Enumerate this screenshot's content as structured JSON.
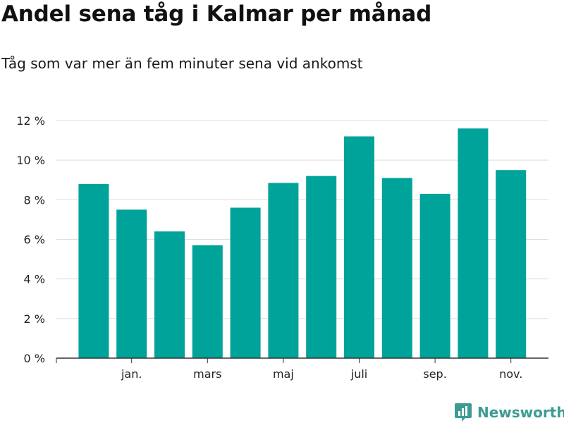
{
  "chart_data": {
    "type": "bar",
    "title": "Andel sena tåg i Kalmar per månad",
    "subtitle": "Tåg som var mer än fem minuter sena vid ankomst",
    "xlabel": "",
    "ylabel": "",
    "x_tick_labels": [
      "jan.",
      "mars",
      "maj",
      "juli",
      "sep.",
      "nov."
    ],
    "y_tick_labels": [
      "0 %",
      "2 %",
      "4 %",
      "6 %",
      "8 %",
      "10 %",
      "12 %"
    ],
    "ylim": [
      0,
      12
    ],
    "grid": true,
    "series": [
      {
        "name": "Andel sena tåg",
        "color": "#00a39a",
        "values": [
          8.8,
          7.5,
          6.4,
          5.7,
          7.6,
          8.85,
          9.2,
          11.2,
          9.1,
          8.3,
          11.6,
          9.5
        ]
      }
    ]
  },
  "brand": {
    "name": "Newsworthy",
    "icon": "newsworthy-logo-icon",
    "color": "#3c9c93"
  }
}
